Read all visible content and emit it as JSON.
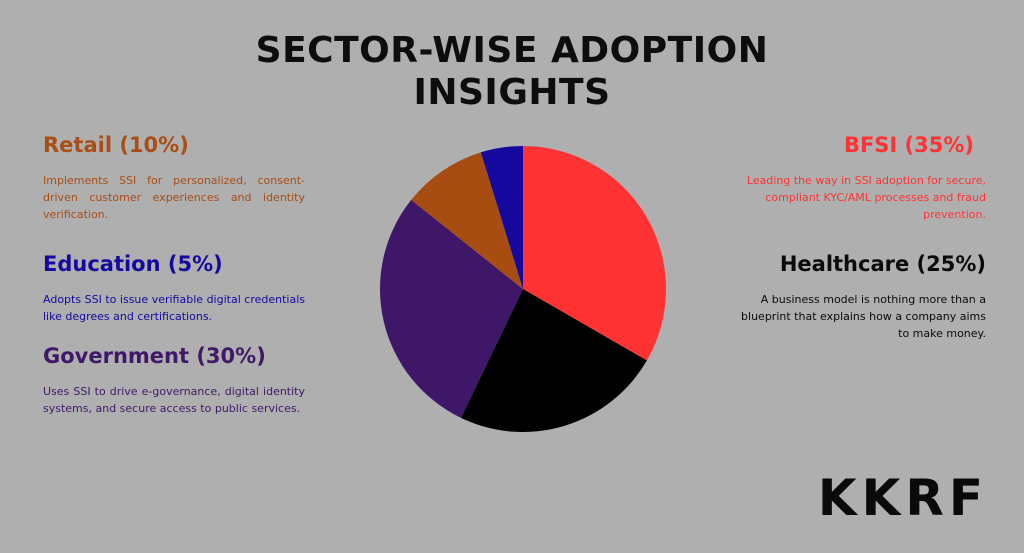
{
  "title_lines": [
    "SECTOR-WISE ADOPTION",
    "INSIGHTS"
  ],
  "sectors": {
    "retail": {
      "heading": "Retail (10%)",
      "text": "Implements SSI for personalized, consent-driven customer experiences and identity verification.",
      "color": "#a84e16"
    },
    "education": {
      "heading": "Education (5%)",
      "text": "Adopts SSI to issue verifiable digital credentials like degrees and certifications.",
      "color": "#15089e"
    },
    "government": {
      "heading": "Government (30%)",
      "text": "Uses SSI to drive e-governance, digital identity systems, and secure access to public services.",
      "color": "#401868"
    },
    "bfsi": {
      "heading": "BFSI (35%)",
      "text": "Leading the way in SSI adoption for secure, compliant KYC/AML processes and fraud prevention.",
      "color": "#ff3333"
    },
    "healthcare": {
      "heading": "Healthcare (25%)",
      "text": "A business model is nothing more than a blueprint that explains how a company aims to make money.",
      "color": "#0a0a0a"
    }
  },
  "logo_text": "KKRF",
  "chart_data": {
    "type": "pie",
    "title": "SECTOR-WISE ADOPTION INSIGHTS",
    "categories": [
      "BFSI",
      "Healthcare",
      "Government",
      "Retail",
      "Education"
    ],
    "values": [
      35,
      25,
      30,
      10,
      5
    ],
    "colors": [
      "#ff3333",
      "#000000",
      "#3f1769",
      "#a84d12",
      "#15089e"
    ],
    "start": "top, clockwise"
  }
}
